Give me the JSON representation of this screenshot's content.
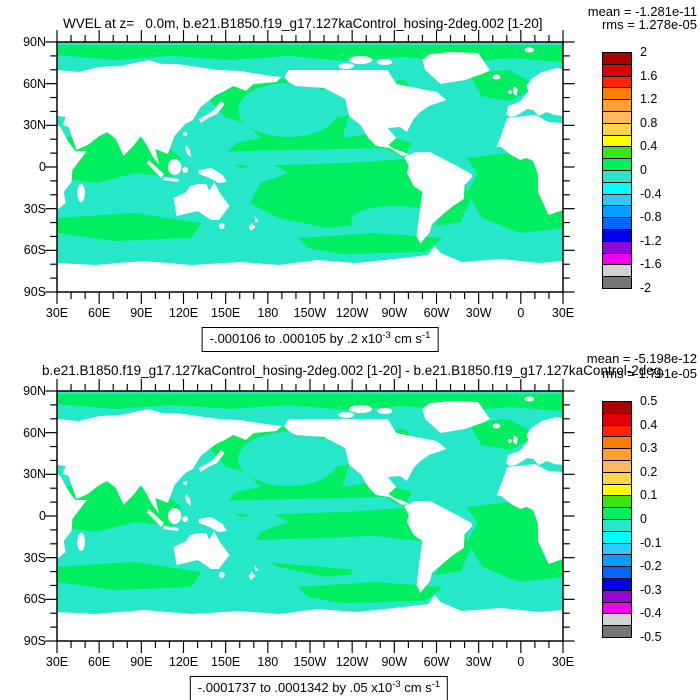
{
  "colors": {
    "ocean_green": "#00ee60",
    "ocean_cyan": "#26e7c7",
    "land": "#ffffff",
    "frame": "#000000"
  },
  "colorbar_colors": [
    "#a90000",
    "#e00000",
    "#ff2500",
    "#f97e07",
    "#ffa030",
    "#ffb85c",
    "#fdd34c",
    "#ffff00",
    "#3be414",
    "#00ee60",
    "#26e7c7",
    "#00ffff",
    "#2fc9ff",
    "#009fff",
    "#0066ff",
    "#0000ee",
    "#9007d8",
    "#ee00ee",
    "#d2d2d2",
    "#767676"
  ],
  "axes": {
    "lon_labels": [
      "30E",
      "60E",
      "90E",
      "120E",
      "150E",
      "180",
      "150W",
      "120W",
      "90W",
      "60W",
      "30W",
      "0",
      "30E"
    ],
    "lat_labels": [
      "90N",
      "60N",
      "30N",
      "0",
      "30S",
      "60S",
      "90S"
    ]
  },
  "panels": [
    {
      "title": "WVEL at z=   0.0m, b.e21.B1850.f19_g17.127kaControl_hosing-2deg.002 [1-20]",
      "mean": "mean = -1.281e-11",
      "rms": "rms = 1.278e-05",
      "colorbar_labels": [
        "2",
        "1.6",
        "1.2",
        "0.8",
        "0.4",
        "0",
        "-0.4",
        "-0.8",
        "-1.2",
        "-1.6",
        "-2"
      ],
      "caption": {
        "range": "-.000106 to .000105 by .2 x10",
        "range_exp": "-3",
        "units": " cm s",
        "units_exp": "-1"
      }
    },
    {
      "title": "b.e21.B1850.f19_g17.127kaControl_hosing-2deg.002 [1-20] - b.e21.B1850.f19_g17.127kaControl-2deg.",
      "mean": "mean = -5.198e-12",
      "rms": "rms = 1.791e-05",
      "colorbar_labels": [
        "0.5",
        "0.4",
        "0.3",
        "0.2",
        "0.1",
        "0",
        "-0.1",
        "-0.2",
        "-0.3",
        "-0.4",
        "-0.5"
      ],
      "caption": {
        "range": "-.0001737 to .0001342 by .05 x10",
        "range_exp": "-3",
        "units": " cm s",
        "units_exp": "-1"
      }
    }
  ],
  "chart_data": [
    {
      "type": "heatmap",
      "title": "WVEL at z=   0.0m, b.e21.B1850.f19_g17.127kaControl_hosing-2deg.002 [1-20]",
      "stats": {
        "mean": "-1.281e-11",
        "rms": "1.278e-05"
      },
      "projection": "equirectangular, longitudes 30E eastward around globe to 30E, latitudes 90N to 90S",
      "x_ticks": [
        "30E",
        "60E",
        "90E",
        "120E",
        "150E",
        "180",
        "150W",
        "120W",
        "90W",
        "60W",
        "30W",
        "0",
        "30E"
      ],
      "y_ticks": [
        "90N",
        "60N",
        "30N",
        "0",
        "30S",
        "60S",
        "90S"
      ],
      "colorbar": {
        "tick_labels": [
          2,
          1.6,
          1.2,
          0.8,
          0.4,
          0,
          -0.4,
          -0.8,
          -1.2,
          -1.6,
          -2
        ],
        "n_boxes": 20,
        "colors_top_to_bottom": [
          "#a90000",
          "#e00000",
          "#ff2500",
          "#f97e07",
          "#ffa030",
          "#ffb85c",
          "#fdd34c",
          "#ffff00",
          "#3be414",
          "#00ee60",
          "#26e7c7",
          "#00ffff",
          "#2fc9ff",
          "#009fff",
          "#0066ff",
          "#0000ee",
          "#9007d8",
          "#ee00ee",
          "#d2d2d2",
          "#767676"
        ],
        "position": "right"
      },
      "data_range_label": "-.000106 to .000105 by .2 x10^-3 cm s^-1",
      "field_summary": "Ocean vertical velocity near zero everywhere: green cells = 0 to +0.2, turquoise cells = -0.2 to 0 (x10^-3 cm s^-1); land masked white"
    },
    {
      "type": "heatmap",
      "title": "b.e21.B1850.f19_g17.127kaControl_hosing-2deg.002 [1-20] - b.e21.B1850.f19_g17.127kaControl-2deg.",
      "stats": {
        "mean": "-5.198e-12",
        "rms": "1.791e-05"
      },
      "projection": "equirectangular, longitudes 30E eastward around globe to 30E, latitudes 90N to 90S",
      "x_ticks": [
        "30E",
        "60E",
        "90E",
        "120E",
        "150E",
        "180",
        "150W",
        "120W",
        "90W",
        "60W",
        "30W",
        "0",
        "30E"
      ],
      "y_ticks": [
        "90N",
        "60N",
        "30N",
        "0",
        "30S",
        "60S",
        "90S"
      ],
      "colorbar": {
        "tick_labels": [
          0.5,
          0.4,
          0.3,
          0.2,
          0.1,
          0,
          -0.1,
          -0.2,
          -0.3,
          -0.4,
          -0.5
        ],
        "n_boxes": 20,
        "colors_top_to_bottom": [
          "#a90000",
          "#e00000",
          "#ff2500",
          "#f97e07",
          "#ffa030",
          "#ffb85c",
          "#fdd34c",
          "#ffff00",
          "#3be414",
          "#00ee60",
          "#26e7c7",
          "#00ffff",
          "#2fc9ff",
          "#009fff",
          "#0066ff",
          "#0000ee",
          "#9007d8",
          "#ee00ee",
          "#d2d2d2",
          "#767676"
        ],
        "position": "right"
      },
      "data_range_label": "-.0001737 to .0001342 by .05 x10^-3 cm s^-1",
      "field_summary": "Difference field near zero: green cells = 0 to +0.05, turquoise cells = -0.05 to 0 (x10^-3 cm s^-1); land masked white"
    }
  ]
}
